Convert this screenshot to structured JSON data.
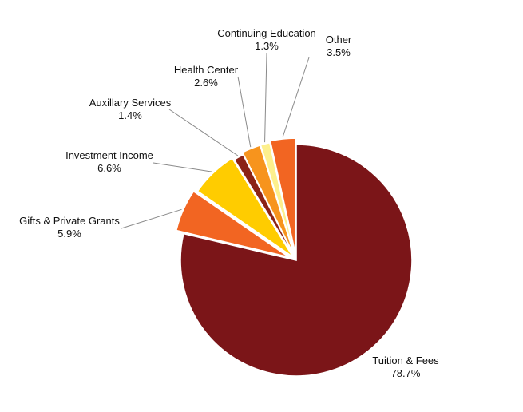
{
  "chart_data": {
    "type": "pie",
    "title": "",
    "exploded": true,
    "slices": [
      {
        "label": "Tuition & Fees",
        "value": 78.7,
        "value_label": "78.7%",
        "color": "#7b1518"
      },
      {
        "label": "Gifts & Private Grants",
        "value": 5.9,
        "value_label": "5.9%",
        "color": "#f26522"
      },
      {
        "label": "Investment Income",
        "value": 6.6,
        "value_label": "6.6%",
        "color": "#ffcc00"
      },
      {
        "label": "Auxillary Services",
        "value": 1.4,
        "value_label": "1.4%",
        "color": "#8b2316"
      },
      {
        "label": "Health Center",
        "value": 2.6,
        "value_label": "2.6%",
        "color": "#f7941d"
      },
      {
        "label": "Continuing Education",
        "value": 1.3,
        "value_label": "1.3%",
        "color": "#fdf08d"
      },
      {
        "label": "Other",
        "value": 3.5,
        "value_label": "3.5%",
        "color": "#f26522"
      }
    ]
  }
}
